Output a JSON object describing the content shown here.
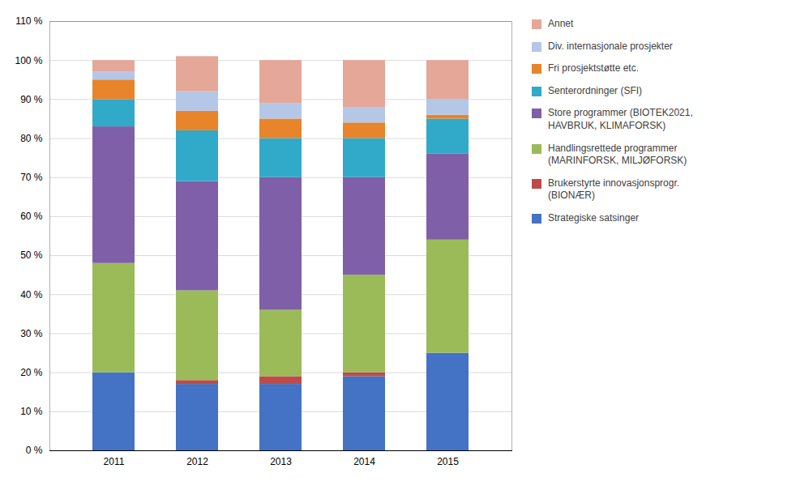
{
  "chart_data": {
    "type": "bar",
    "stacked": true,
    "grid": true,
    "legend": "right",
    "categories": [
      "2011",
      "2012",
      "2013",
      "2014",
      "2015"
    ],
    "series": [
      {
        "name": "Strategiske satsinger",
        "color": "#4472C4",
        "values": [
          20,
          17,
          17,
          19,
          25
        ]
      },
      {
        "name": "Brukerstyrte innovasjonsprogr.\n(BIONÆR)",
        "color": "#BE4B48",
        "values": [
          0,
          1,
          2,
          1,
          0
        ]
      },
      {
        "name": "Handlingsrettede programmer\n(MARINFORSK, MILJØFORSK)",
        "color": "#9BBB59",
        "values": [
          28,
          23,
          17,
          25,
          29
        ]
      },
      {
        "name": "Store programmer (BIOTEK2021,\nHAVBRUK, KLIMAFORSK)",
        "color": "#7F5FA8",
        "values": [
          35,
          28,
          34,
          25,
          22
        ]
      },
      {
        "name": "Senterordninger (SFI)",
        "color": "#31A9C8",
        "values": [
          7,
          13,
          10,
          10,
          9
        ]
      },
      {
        "name": "Fri prosjektstøtte etc.",
        "color": "#E8842A",
        "values": [
          5,
          5,
          5,
          4,
          1
        ]
      },
      {
        "name": "Div. internasjonale prosjekter",
        "color": "#B4C7E7",
        "values": [
          2,
          5,
          4,
          4,
          4
        ]
      },
      {
        "name": "Annet",
        "color": "#E4A798",
        "values": [
          3,
          9,
          11,
          12,
          10
        ]
      }
    ],
    "ylim": [
      0,
      110
    ],
    "yticks": [
      {
        "value": 0,
        "label": "0 %"
      },
      {
        "value": 10,
        "label": "10 %"
      },
      {
        "value": 20,
        "label": "20 %"
      },
      {
        "value": 30,
        "label": "30 %"
      },
      {
        "value": 40,
        "label": "40 %"
      },
      {
        "value": 50,
        "label": "50 %"
      },
      {
        "value": 60,
        "label": "60 %"
      },
      {
        "value": 70,
        "label": "70 %"
      },
      {
        "value": 80,
        "label": "80 %"
      },
      {
        "value": 90,
        "label": "90 %"
      },
      {
        "value": 100,
        "label": "100 %"
      },
      {
        "value": 110,
        "label": "110 %"
      }
    ]
  }
}
